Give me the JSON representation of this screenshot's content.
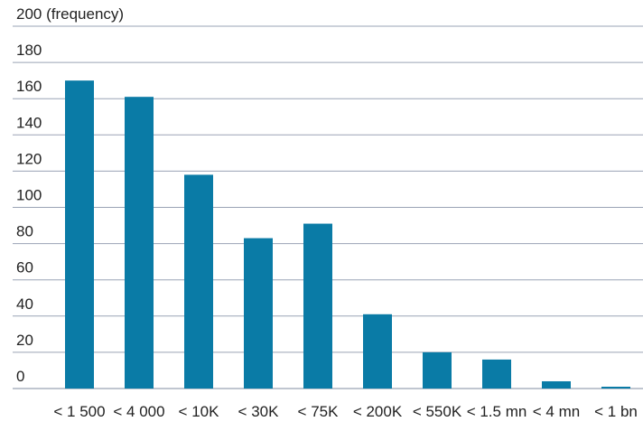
{
  "chart_data": {
    "type": "bar",
    "ylabel": "(frequency)",
    "ylim": [
      0,
      200
    ],
    "yticks": [
      0,
      20,
      40,
      60,
      80,
      100,
      120,
      140,
      160,
      180,
      200
    ],
    "grid": true,
    "categories": [
      "< 1 500",
      "< 4 000",
      "< 10K",
      "< 30K",
      "< 75K",
      "< 200K",
      "< 550K",
      "< 1.5 mn",
      "< 4 mn",
      "< 1 bn"
    ],
    "values": [
      170,
      161,
      118,
      83,
      91,
      41,
      20,
      16,
      4,
      1
    ],
    "bar_color": "#0a7ba6"
  }
}
